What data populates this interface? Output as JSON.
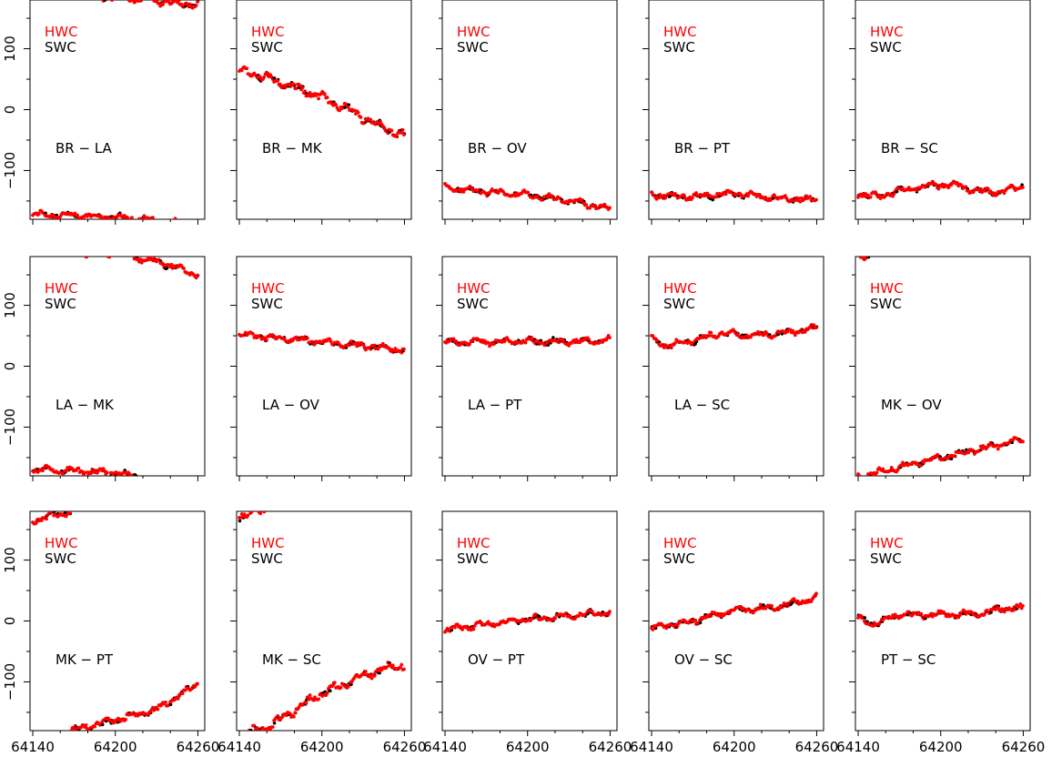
{
  "colors": {
    "hwc": "#ff0000",
    "swc": "#000000",
    "frame": "#000000"
  },
  "legend": {
    "hwc": "HWC",
    "swc": "SWC"
  },
  "x_tick_labels": [
    "64140",
    "64200",
    "64260"
  ],
  "y_tick_labels": [
    "100",
    "0",
    "−100"
  ],
  "chart_data": {
    "type": "scatter",
    "xlim": [
      64138,
      64265
    ],
    "ylim": [
      -180,
      180
    ],
    "x_ticks": [
      64140,
      64200,
      64260
    ],
    "y_ticks": [
      100,
      0,
      -100
    ],
    "x_minor_ticks": [
      64160,
      64180,
      64220,
      64240
    ],
    "y_minor_ticks": [
      150,
      50,
      -50,
      -150
    ],
    "series_names": [
      "HWC",
      "SWC"
    ],
    "legend_position": "upper-left",
    "phase_wrapped": true,
    "panels": [
      {
        "label": "BR − LA",
        "knots": [
          [
            64140,
            188
          ],
          [
            64170,
            186
          ],
          [
            64200,
            184
          ],
          [
            64230,
            178
          ],
          [
            64260,
            172
          ]
        ],
        "wiggle": 3
      },
      {
        "label": "BR − MK",
        "knots": [
          [
            64140,
            65
          ],
          [
            64160,
            52
          ],
          [
            64180,
            37
          ],
          [
            64200,
            20
          ],
          [
            64220,
            0
          ],
          [
            64240,
            -25
          ],
          [
            64260,
            -43
          ]
        ],
        "wiggle": 4
      },
      {
        "label": "BR − OV",
        "knots": [
          [
            64140,
            -128
          ],
          [
            64170,
            -135
          ],
          [
            64200,
            -140
          ],
          [
            64230,
            -150
          ],
          [
            64260,
            -162
          ]
        ],
        "wiggle": 3
      },
      {
        "label": "BR − PT",
        "knots": [
          [
            64140,
            -140
          ],
          [
            64170,
            -143
          ],
          [
            64200,
            -138
          ],
          [
            64230,
            -145
          ],
          [
            64260,
            -148
          ]
        ],
        "wiggle": 3
      },
      {
        "label": "BR − SC",
        "knots": [
          [
            64140,
            -138
          ],
          [
            64155,
            -143
          ],
          [
            64170,
            -133
          ],
          [
            64190,
            -125
          ],
          [
            64210,
            -123
          ],
          [
            64230,
            -135
          ],
          [
            64245,
            -135
          ],
          [
            64260,
            -124
          ]
        ],
        "wiggle": 3
      },
      {
        "label": "LA − MK",
        "knots": [
          [
            64140,
            190
          ],
          [
            64170,
            188
          ],
          [
            64200,
            185
          ],
          [
            64230,
            172
          ],
          [
            64260,
            150
          ]
        ],
        "wiggle": 3
      },
      {
        "label": "LA − OV",
        "knots": [
          [
            64140,
            52
          ],
          [
            64170,
            45
          ],
          [
            64200,
            40
          ],
          [
            64230,
            33
          ],
          [
            64260,
            26
          ]
        ],
        "wiggle": 3
      },
      {
        "label": "LA − PT",
        "knots": [
          [
            64140,
            40
          ],
          [
            64170,
            40
          ],
          [
            64200,
            41
          ],
          [
            64230,
            40
          ],
          [
            64260,
            43
          ]
        ],
        "wiggle": 3
      },
      {
        "label": "LA − SC",
        "knots": [
          [
            64140,
            45
          ],
          [
            64150,
            33
          ],
          [
            64170,
            42
          ],
          [
            64190,
            55
          ],
          [
            64210,
            50
          ],
          [
            64230,
            53
          ],
          [
            64260,
            62
          ]
        ],
        "wiggle": 3
      },
      {
        "label": "MK − OV",
        "knots": [
          [
            64140,
            178
          ],
          [
            64170,
            195
          ],
          [
            64200,
            210
          ],
          [
            64230,
            225
          ],
          [
            64260,
            240
          ]
        ],
        "wiggle": 3
      },
      {
        "label": "MK − PT",
        "knots": [
          [
            64140,
            165
          ],
          [
            64170,
            182
          ],
          [
            64200,
            197
          ],
          [
            64230,
            215
          ],
          [
            64260,
            257
          ]
        ],
        "wiggle": 3
      },
      {
        "label": "MK − SC",
        "knots": [
          [
            64140,
            172
          ],
          [
            64160,
            185
          ],
          [
            64200,
            242
          ],
          [
            64240,
            278
          ],
          [
            64258,
            287
          ]
        ],
        "wiggle": 4
      },
      {
        "label": "OV − PT",
        "knots": [
          [
            64140,
            -15
          ],
          [
            64170,
            -5
          ],
          [
            64200,
            3
          ],
          [
            64230,
            8
          ],
          [
            64260,
            15
          ]
        ],
        "wiggle": 3
      },
      {
        "label": "OV − SC",
        "knots": [
          [
            64140,
            -12
          ],
          [
            64170,
            0
          ],
          [
            64200,
            18
          ],
          [
            64230,
            22
          ],
          [
            64260,
            38
          ]
        ],
        "wiggle": 3
      },
      {
        "label": "PT − SC",
        "knots": [
          [
            64140,
            5
          ],
          [
            64150,
            -5
          ],
          [
            64170,
            10
          ],
          [
            64200,
            10
          ],
          [
            64230,
            12
          ],
          [
            64250,
            23
          ],
          [
            64260,
            20
          ]
        ],
        "wiggle": 3
      }
    ]
  }
}
